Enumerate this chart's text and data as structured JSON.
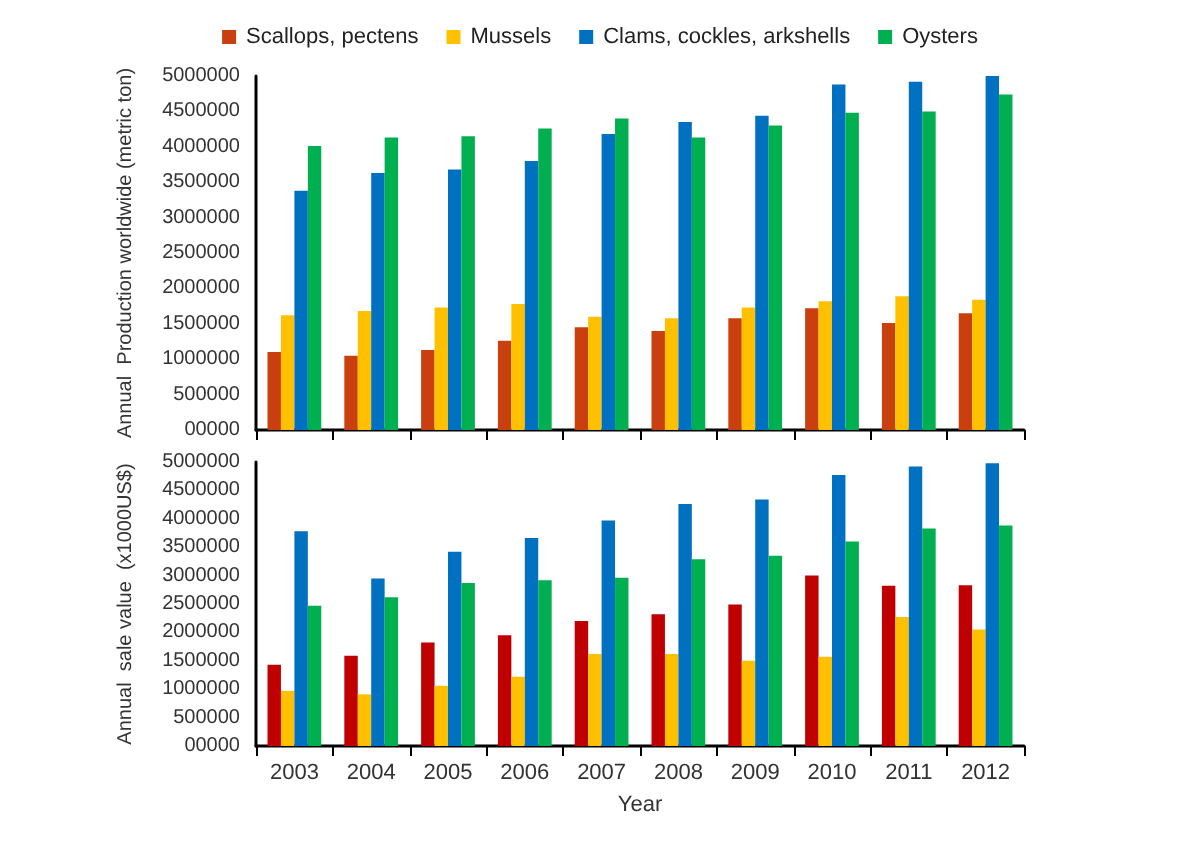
{
  "chart_data": [
    {
      "type": "bar",
      "ylabel": "Annual  Production worldwide (metric ton)",
      "categories": [
        "2003",
        "2004",
        "2005",
        "2006",
        "2007",
        "2008",
        "2009",
        "2010",
        "2011",
        "2012"
      ],
      "series": [
        {
          "name": "Scallops, pectens",
          "color": "#c9400e",
          "values": [
            1100000,
            1050000,
            1130000,
            1260000,
            1450000,
            1400000,
            1580000,
            1720000,
            1510000,
            1650000
          ]
        },
        {
          "name": "Mussels",
          "color": "#ffc000",
          "values": [
            1620000,
            1680000,
            1730000,
            1780000,
            1600000,
            1580000,
            1730000,
            1820000,
            1890000,
            1840000
          ]
        },
        {
          "name": "Clams, cockles, arkshells",
          "color": "#0070c0",
          "values": [
            3380000,
            3630000,
            3680000,
            3800000,
            4180000,
            4350000,
            4440000,
            4880000,
            4920000,
            5000000
          ]
        },
        {
          "name": "Oysters",
          "color": "#00b050",
          "values": [
            4010000,
            4130000,
            4150000,
            4260000,
            4400000,
            4130000,
            4300000,
            4480000,
            4500000,
            4740000
          ]
        }
      ],
      "ylim": [
        0,
        5000000
      ],
      "yticks": [
        {
          "value": 0,
          "label": "00000"
        },
        500000,
        1000000,
        1500000,
        2000000,
        2500000,
        3000000,
        3500000,
        4000000,
        4500000,
        5000000
      ],
      "grid": false,
      "legend": "top",
      "tick_labels": "y"
    },
    {
      "type": "bar",
      "xlabel": "Year",
      "ylabel": "Annual  sale value  (x1000US$)",
      "categories": [
        "2003",
        "2004",
        "2005",
        "2006",
        "2007",
        "2008",
        "2009",
        "2010",
        "2011",
        "2012"
      ],
      "series": [
        {
          "color": "#c00000",
          "values": [
            1430000,
            1590000,
            1820000,
            1950000,
            2200000,
            2320000,
            2490000,
            3000000,
            2820000,
            2830000
          ]
        },
        {
          "color": "#ffc000",
          "values": [
            970000,
            910000,
            1060000,
            1220000,
            1620000,
            1620000,
            1500000,
            1570000,
            2270000,
            2050000
          ]
        },
        {
          "color": "#0070c0",
          "values": [
            3780000,
            2950000,
            3420000,
            3660000,
            3970000,
            4260000,
            4340000,
            4770000,
            4920000,
            4980000
          ]
        },
        {
          "color": "#00b050",
          "values": [
            2470000,
            2620000,
            2870000,
            2920000,
            2960000,
            3290000,
            3350000,
            3600000,
            3830000,
            3880000
          ]
        }
      ],
      "ylim": [
        0,
        5000000
      ],
      "yticks": [
        {
          "value": 0,
          "label": "00000"
        },
        500000,
        1000000,
        1500000,
        2000000,
        2500000,
        3000000,
        3500000,
        4000000,
        4500000,
        5000000
      ],
      "grid": false,
      "legend": false
    }
  ]
}
